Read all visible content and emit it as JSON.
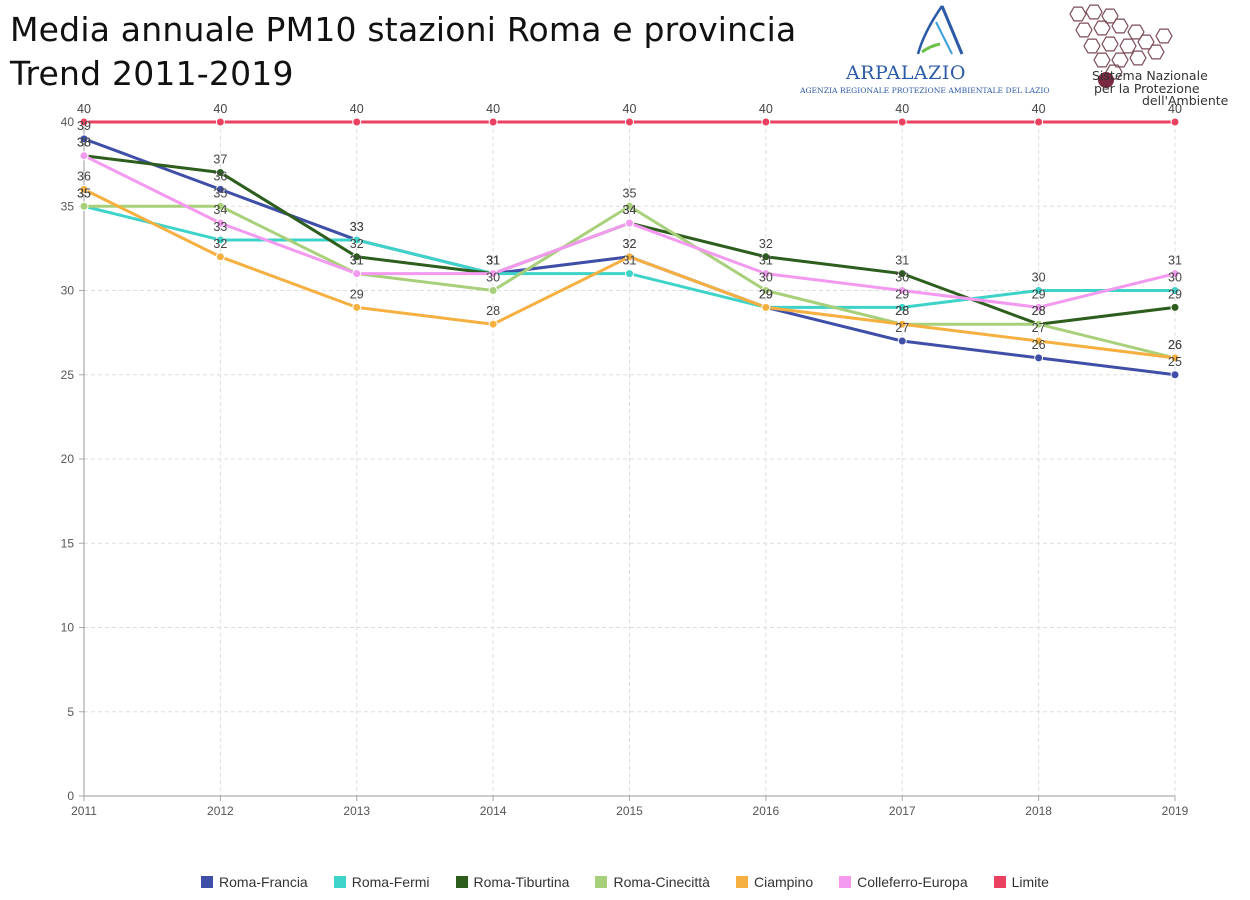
{
  "title": {
    "line1": "Media annuale PM10 stazioni Roma e provincia",
    "line2": "Trend 2011-2019"
  },
  "logos": {
    "arpa_name": "ARPALAZIO",
    "arpa_sub": "AGENZIA REGIONALE PROTEZIONE AMBIENTALE DEL LAZIO",
    "snpa_line1": "Sistema Nazionale",
    "snpa_line2": "per la Protezione",
    "snpa_line3": "dell'Ambiente",
    "arpa_icon": "arpa-triangle-logo-icon",
    "snpa_icon": "hexagon-cluster-logo-icon"
  },
  "chart_data": {
    "type": "line",
    "x": [
      "2011",
      "2012",
      "2013",
      "2014",
      "2015",
      "2016",
      "2017",
      "2018",
      "2019"
    ],
    "ylim": [
      0,
      40
    ],
    "yticks": [
      "0",
      "5",
      "10",
      "15",
      "20",
      "25",
      "30",
      "35",
      "40"
    ],
    "grid": true,
    "legend_position": "bottom",
    "data_labels": true,
    "series": [
      {
        "name": "Roma-Francia",
        "color": "#3f4fa8",
        "values": [
          39,
          36,
          33,
          31,
          32,
          29,
          27,
          26,
          25
        ]
      },
      {
        "name": "Roma-Fermi",
        "color": "#3ed3c9",
        "values": [
          35,
          33,
          33,
          31,
          31,
          29,
          29,
          30,
          30
        ]
      },
      {
        "name": "Roma-Tiburtina",
        "color": "#2d5e1e",
        "values": [
          38,
          37,
          32,
          31,
          34,
          32,
          31,
          28,
          29
        ]
      },
      {
        "name": "Roma-Cinecittà",
        "color": "#a8d07a",
        "values": [
          35,
          35,
          31,
          30,
          35,
          30,
          28,
          28,
          26
        ]
      },
      {
        "name": "Ciampino",
        "color": "#f5b041",
        "values": [
          36,
          32,
          29,
          28,
          32,
          29,
          28,
          27,
          26
        ]
      },
      {
        "name": "Colleferro-Europa",
        "color": "#f39af0",
        "values": [
          38,
          34,
          31,
          31,
          34,
          31,
          30,
          29,
          31
        ]
      },
      {
        "name": "Limite",
        "color": "#ea4160",
        "values": [
          40,
          40,
          40,
          40,
          40,
          40,
          40,
          40,
          40
        ]
      }
    ]
  }
}
